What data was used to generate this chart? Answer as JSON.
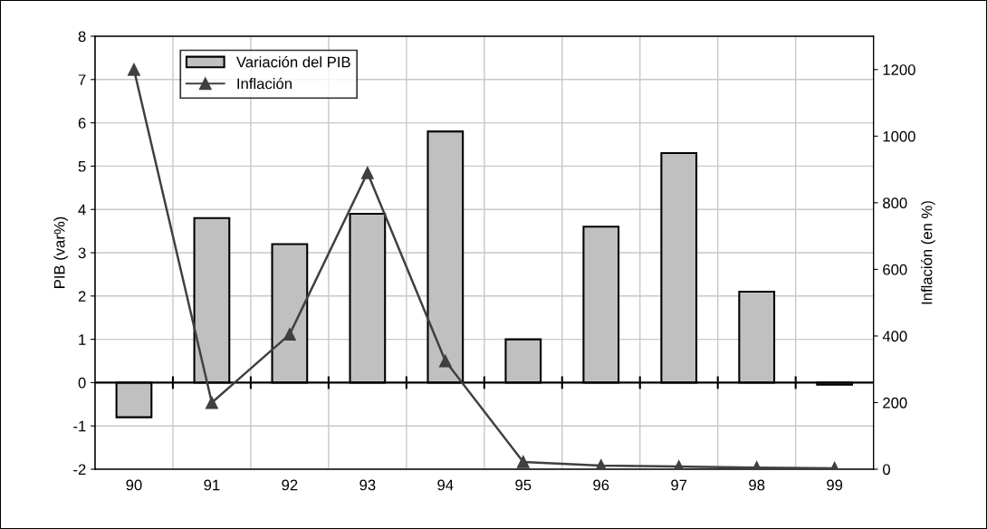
{
  "chart_data": {
    "type": "bar",
    "ylabel": "PIB (var%)",
    "y2label": "Inflación (en %)",
    "categories": [
      "90",
      "91",
      "92",
      "93",
      "94",
      "95",
      "96",
      "97",
      "98",
      "99"
    ],
    "series": [
      {
        "name": "Variación del PIB",
        "color": "#c0c0c0",
        "values": [
          -0.8,
          3.8,
          3.2,
          3.9,
          5.8,
          1.0,
          3.6,
          5.3,
          2.1,
          -0.05
        ]
      },
      {
        "name": "Inflación",
        "type": "line",
        "axis": "y2",
        "color": "#404040",
        "marker": "triangle",
        "values": [
          1200,
          200,
          405,
          890,
          325,
          22,
          11,
          8,
          5,
          3
        ]
      }
    ],
    "ylim": [
      -2,
      8
    ],
    "yticks": [
      -2,
      -1,
      0,
      1,
      2,
      3,
      4,
      5,
      6,
      7,
      8
    ],
    "y2lim": [
      0,
      1300
    ],
    "y2ticks": [
      0,
      200,
      400,
      600,
      800,
      1000,
      1200
    ],
    "grid": true,
    "legend": "top left"
  }
}
